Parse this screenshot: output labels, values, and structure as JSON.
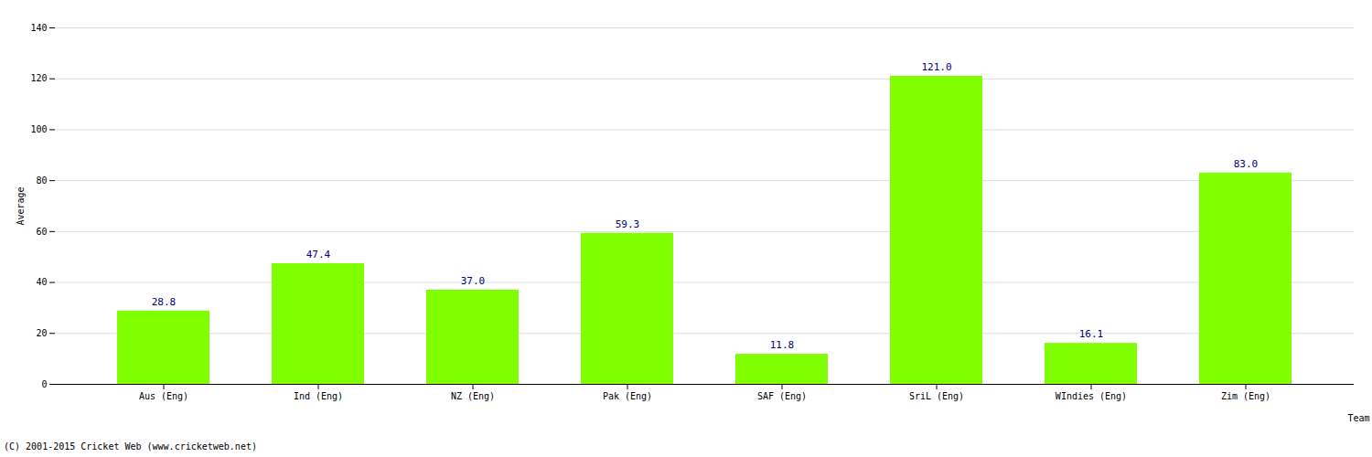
{
  "chart_data": {
    "type": "bar",
    "categories": [
      "Aus (Eng)",
      "Ind (Eng)",
      "NZ (Eng)",
      "Pak (Eng)",
      "SAF (Eng)",
      "SriL (Eng)",
      "WIndies (Eng)",
      "Zim (Eng)"
    ],
    "values": [
      28.8,
      47.4,
      37.0,
      59.3,
      11.8,
      121.0,
      16.1,
      83.0
    ],
    "value_labels": [
      "28.8",
      "47.4",
      "37.0",
      "59.3",
      "11.8",
      "121.0",
      "16.1",
      "83.0"
    ],
    "data_labels": true,
    "color": "#80ff00",
    "x_label": "Team",
    "y_label": "Average",
    "ylim": [
      0,
      140
    ],
    "yticks": [
      0,
      20,
      40,
      60,
      80,
      100,
      120,
      140
    ],
    "grid": true,
    "caption": "(C) 2001-2015 Cricket Web (www.cricketweb.net)"
  }
}
